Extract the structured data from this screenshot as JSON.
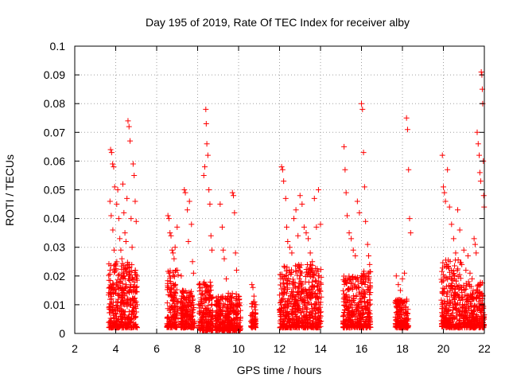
{
  "chart_data": {
    "type": "scatter",
    "title": "Day 195 of 2019, Rate Of TEC Index for receiver alby",
    "xlabel": "GPS time / hours",
    "ylabel": "ROTI / TECUs",
    "xlim": [
      2,
      22
    ],
    "ylim": [
      0,
      0.1
    ],
    "xticks": [
      2,
      4,
      6,
      8,
      10,
      12,
      14,
      16,
      18,
      20,
      22
    ],
    "xtick_labels": [
      "2",
      "4",
      "6",
      "8",
      "10",
      "12",
      "14",
      "16",
      "18",
      "20",
      "22"
    ],
    "yticks": [
      0,
      0.01,
      0.02,
      0.03,
      0.04,
      0.05,
      0.06,
      0.07,
      0.08,
      0.09,
      0.1
    ],
    "ytick_labels": [
      "0",
      "0.01",
      "0.02",
      "0.03",
      "0.04",
      "0.05",
      "0.06",
      "0.07",
      "0.08",
      "0.09",
      "0.1"
    ],
    "grid": true,
    "marker": "+",
    "color": "#ff0000",
    "series": [
      {
        "name": "ROTI",
        "points": [
          [
            3.75,
            0.064
          ],
          [
            3.8,
            0.063
          ],
          [
            3.85,
            0.059
          ],
          [
            3.9,
            0.058
          ],
          [
            3.95,
            0.051
          ],
          [
            3.72,
            0.046
          ],
          [
            3.78,
            0.041
          ],
          [
            3.86,
            0.036
          ],
          [
            3.92,
            0.029
          ],
          [
            3.98,
            0.024
          ],
          [
            4.05,
            0.045
          ],
          [
            4.1,
            0.05
          ],
          [
            4.15,
            0.04
          ],
          [
            4.2,
            0.033
          ],
          [
            4.25,
            0.029
          ],
          [
            4.3,
            0.026
          ],
          [
            4.35,
            0.052
          ],
          [
            4.4,
            0.042
          ],
          [
            4.45,
            0.035
          ],
          [
            4.5,
            0.032
          ],
          [
            4.55,
            0.047
          ],
          [
            4.6,
            0.074
          ],
          [
            4.65,
            0.072
          ],
          [
            4.7,
            0.067
          ],
          [
            4.75,
            0.04
          ],
          [
            4.8,
            0.03
          ],
          [
            4.85,
            0.059
          ],
          [
            4.9,
            0.055
          ],
          [
            4.95,
            0.046
          ],
          [
            5.0,
            0.039
          ],
          [
            3.7,
            0.016
          ],
          [
            3.8,
            0.012
          ],
          [
            3.9,
            0.009
          ],
          [
            4.0,
            0.014
          ],
          [
            4.1,
            0.011
          ],
          [
            4.2,
            0.018
          ],
          [
            4.3,
            0.013
          ],
          [
            4.4,
            0.021
          ],
          [
            4.5,
            0.017
          ],
          [
            4.6,
            0.024
          ],
          [
            4.7,
            0.015
          ],
          [
            4.8,
            0.019
          ],
          [
            4.9,
            0.012
          ],
          [
            5.0,
            0.016
          ],
          [
            6.55,
            0.041
          ],
          [
            6.6,
            0.04
          ],
          [
            6.65,
            0.035
          ],
          [
            6.7,
            0.034
          ],
          [
            6.75,
            0.029
          ],
          [
            6.8,
            0.028
          ],
          [
            6.85,
            0.026
          ],
          [
            6.9,
            0.03
          ],
          [
            6.95,
            0.022
          ],
          [
            7.0,
            0.037
          ],
          [
            7.2,
            0.02
          ],
          [
            7.3,
            0.014
          ],
          [
            7.35,
            0.05
          ],
          [
            7.4,
            0.049
          ],
          [
            7.5,
            0.043
          ],
          [
            7.55,
            0.032
          ],
          [
            7.6,
            0.046
          ],
          [
            7.7,
            0.038
          ],
          [
            7.75,
            0.025
          ],
          [
            7.8,
            0.021
          ],
          [
            8.3,
            0.055
          ],
          [
            8.35,
            0.058
          ],
          [
            8.4,
            0.078
          ],
          [
            8.42,
            0.073
          ],
          [
            8.45,
            0.066
          ],
          [
            8.5,
            0.062
          ],
          [
            8.55,
            0.05
          ],
          [
            8.6,
            0.045
          ],
          [
            8.65,
            0.034
          ],
          [
            8.7,
            0.029
          ],
          [
            9.1,
            0.045
          ],
          [
            9.2,
            0.037
          ],
          [
            9.25,
            0.029
          ],
          [
            9.3,
            0.026
          ],
          [
            9.4,
            0.019
          ],
          [
            9.5,
            0.014
          ],
          [
            9.7,
            0.049
          ],
          [
            9.75,
            0.048
          ],
          [
            9.8,
            0.042
          ],
          [
            9.85,
            0.028
          ],
          [
            9.9,
            0.022
          ],
          [
            10.0,
            0.013
          ],
          [
            10.65,
            0.017
          ],
          [
            10.7,
            0.016
          ],
          [
            10.75,
            0.013
          ],
          [
            10.8,
            0.01
          ],
          [
            12.1,
            0.058
          ],
          [
            12.15,
            0.057
          ],
          [
            12.2,
            0.053
          ],
          [
            12.3,
            0.047
          ],
          [
            12.35,
            0.037
          ],
          [
            12.4,
            0.032
          ],
          [
            12.5,
            0.03
          ],
          [
            12.6,
            0.028
          ],
          [
            12.7,
            0.04
          ],
          [
            12.8,
            0.043
          ],
          [
            12.9,
            0.034
          ],
          [
            13.0,
            0.048
          ],
          [
            13.1,
            0.045
          ],
          [
            13.2,
            0.037
          ],
          [
            13.3,
            0.035
          ],
          [
            13.4,
            0.033
          ],
          [
            13.5,
            0.028
          ],
          [
            13.6,
            0.025
          ],
          [
            13.7,
            0.047
          ],
          [
            13.8,
            0.037
          ],
          [
            13.9,
            0.05
          ],
          [
            14.0,
            0.038
          ],
          [
            15.15,
            0.065
          ],
          [
            15.2,
            0.057
          ],
          [
            15.25,
            0.049
          ],
          [
            15.3,
            0.041
          ],
          [
            15.4,
            0.035
          ],
          [
            15.5,
            0.033
          ],
          [
            15.6,
            0.029
          ],
          [
            15.7,
            0.027
          ],
          [
            15.8,
            0.046
          ],
          [
            15.9,
            0.042
          ],
          [
            16.0,
            0.08
          ],
          [
            16.05,
            0.078
          ],
          [
            16.1,
            0.063
          ],
          [
            16.15,
            0.051
          ],
          [
            16.2,
            0.039
          ],
          [
            16.3,
            0.031
          ],
          [
            16.35,
            0.027
          ],
          [
            16.4,
            0.024
          ],
          [
            17.7,
            0.02
          ],
          [
            17.8,
            0.017
          ],
          [
            17.9,
            0.015
          ],
          [
            18.0,
            0.019
          ],
          [
            18.1,
            0.021
          ],
          [
            18.2,
            0.075
          ],
          [
            18.25,
            0.071
          ],
          [
            18.3,
            0.057
          ],
          [
            18.35,
            0.04
          ],
          [
            18.4,
            0.035
          ],
          [
            19.95,
            0.062
          ],
          [
            20.0,
            0.051
          ],
          [
            20.05,
            0.049
          ],
          [
            20.1,
            0.046
          ],
          [
            20.2,
            0.057
          ],
          [
            20.3,
            0.044
          ],
          [
            20.4,
            0.038
          ],
          [
            20.5,
            0.033
          ],
          [
            20.6,
            0.028
          ],
          [
            20.7,
            0.043
          ],
          [
            20.8,
            0.036
          ],
          [
            20.9,
            0.024
          ],
          [
            21.0,
            0.029
          ],
          [
            21.1,
            0.022
          ],
          [
            21.2,
            0.027
          ],
          [
            21.3,
            0.021
          ],
          [
            21.4,
            0.019
          ],
          [
            21.5,
            0.033
          ],
          [
            21.55,
            0.031
          ],
          [
            21.6,
            0.028
          ],
          [
            21.65,
            0.07
          ],
          [
            21.7,
            0.066
          ],
          [
            21.75,
            0.062
          ],
          [
            21.78,
            0.056
          ],
          [
            21.82,
            0.053
          ],
          [
            21.85,
            0.091
          ],
          [
            21.88,
            0.09
          ],
          [
            21.9,
            0.085
          ],
          [
            21.92,
            0.08
          ],
          [
            21.95,
            0.06
          ],
          [
            21.97,
            0.048
          ],
          [
            21.99,
            0.044
          ]
        ]
      }
    ],
    "dense_clusters": [
      {
        "x_range": [
          3.65,
          5.05
        ],
        "y_range": [
          0.002,
          0.025
        ]
      },
      {
        "x_range": [
          6.5,
          7.05
        ],
        "y_range": [
          0.002,
          0.022
        ]
      },
      {
        "x_range": [
          7.15,
          7.85
        ],
        "y_range": [
          0.002,
          0.015
        ]
      },
      {
        "x_range": [
          8.05,
          8.75
        ],
        "y_range": [
          0.001,
          0.018
        ]
      },
      {
        "x_range": [
          8.85,
          9.55
        ],
        "y_range": [
          0.001,
          0.013
        ]
      },
      {
        "x_range": [
          9.55,
          10.1
        ],
        "y_range": [
          0.001,
          0.014
        ]
      },
      {
        "x_range": [
          10.6,
          10.85
        ],
        "y_range": [
          0.002,
          0.011
        ]
      },
      {
        "x_range": [
          12.0,
          12.9
        ],
        "y_range": [
          0.002,
          0.024
        ]
      },
      {
        "x_range": [
          12.9,
          14.05
        ],
        "y_range": [
          0.002,
          0.024
        ]
      },
      {
        "x_range": [
          15.1,
          15.95
        ],
        "y_range": [
          0.002,
          0.02
        ]
      },
      {
        "x_range": [
          15.95,
          16.45
        ],
        "y_range": [
          0.002,
          0.022
        ]
      },
      {
        "x_range": [
          17.65,
          18.3
        ],
        "y_range": [
          0.002,
          0.012
        ]
      },
      {
        "x_range": [
          19.9,
          20.9
        ],
        "y_range": [
          0.002,
          0.026
        ]
      },
      {
        "x_range": [
          20.9,
          22.0
        ],
        "y_range": [
          0.002,
          0.018
        ]
      }
    ]
  }
}
